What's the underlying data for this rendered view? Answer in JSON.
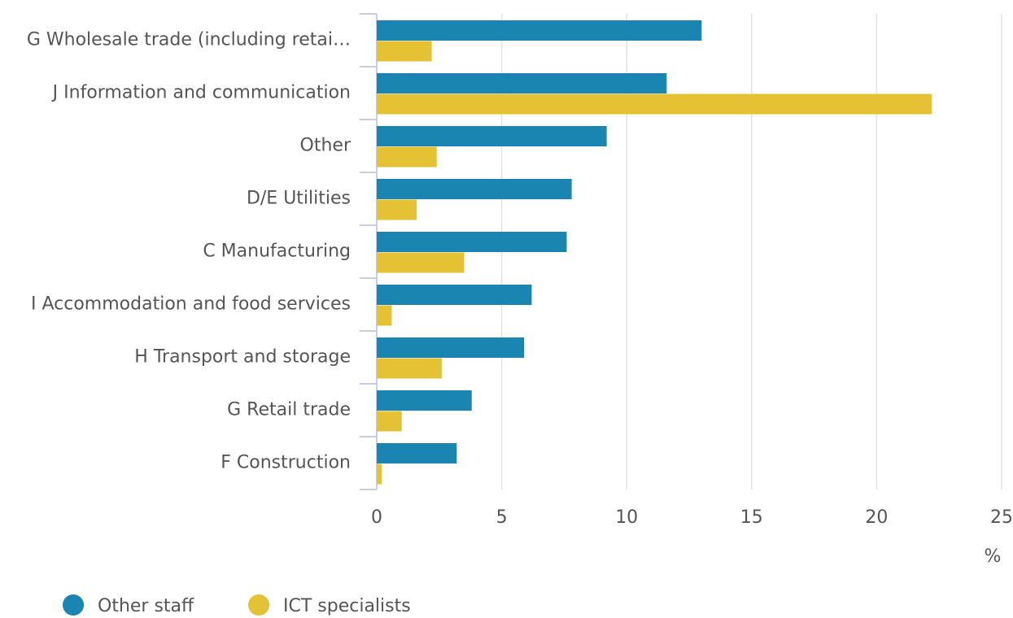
{
  "chart_data": {
    "type": "hbar",
    "categories": [
      "G Wholesale trade (including retai…",
      "J Information and communication",
      "Other",
      "D/E Utilities",
      "C Manufacturing",
      "I Accommodation and food services",
      "H Transport and storage",
      "G Retail trade",
      "F Construction"
    ],
    "series": [
      {
        "name": "Other staff",
        "color": "#1a85b0",
        "values": [
          13.0,
          11.6,
          9.2,
          7.8,
          7.6,
          6.2,
          5.9,
          3.8,
          3.2
        ]
      },
      {
        "name": "ICT specialists",
        "color": "#e4c234",
        "values": [
          2.2,
          22.2,
          2.4,
          1.6,
          3.5,
          0.6,
          2.6,
          1.0,
          0.2
        ]
      }
    ],
    "x_label": "%",
    "xlim": [
      0,
      25
    ],
    "xticks": [
      0,
      5,
      10,
      15,
      20,
      25
    ],
    "grid": true,
    "legend": "bottom-left"
  }
}
